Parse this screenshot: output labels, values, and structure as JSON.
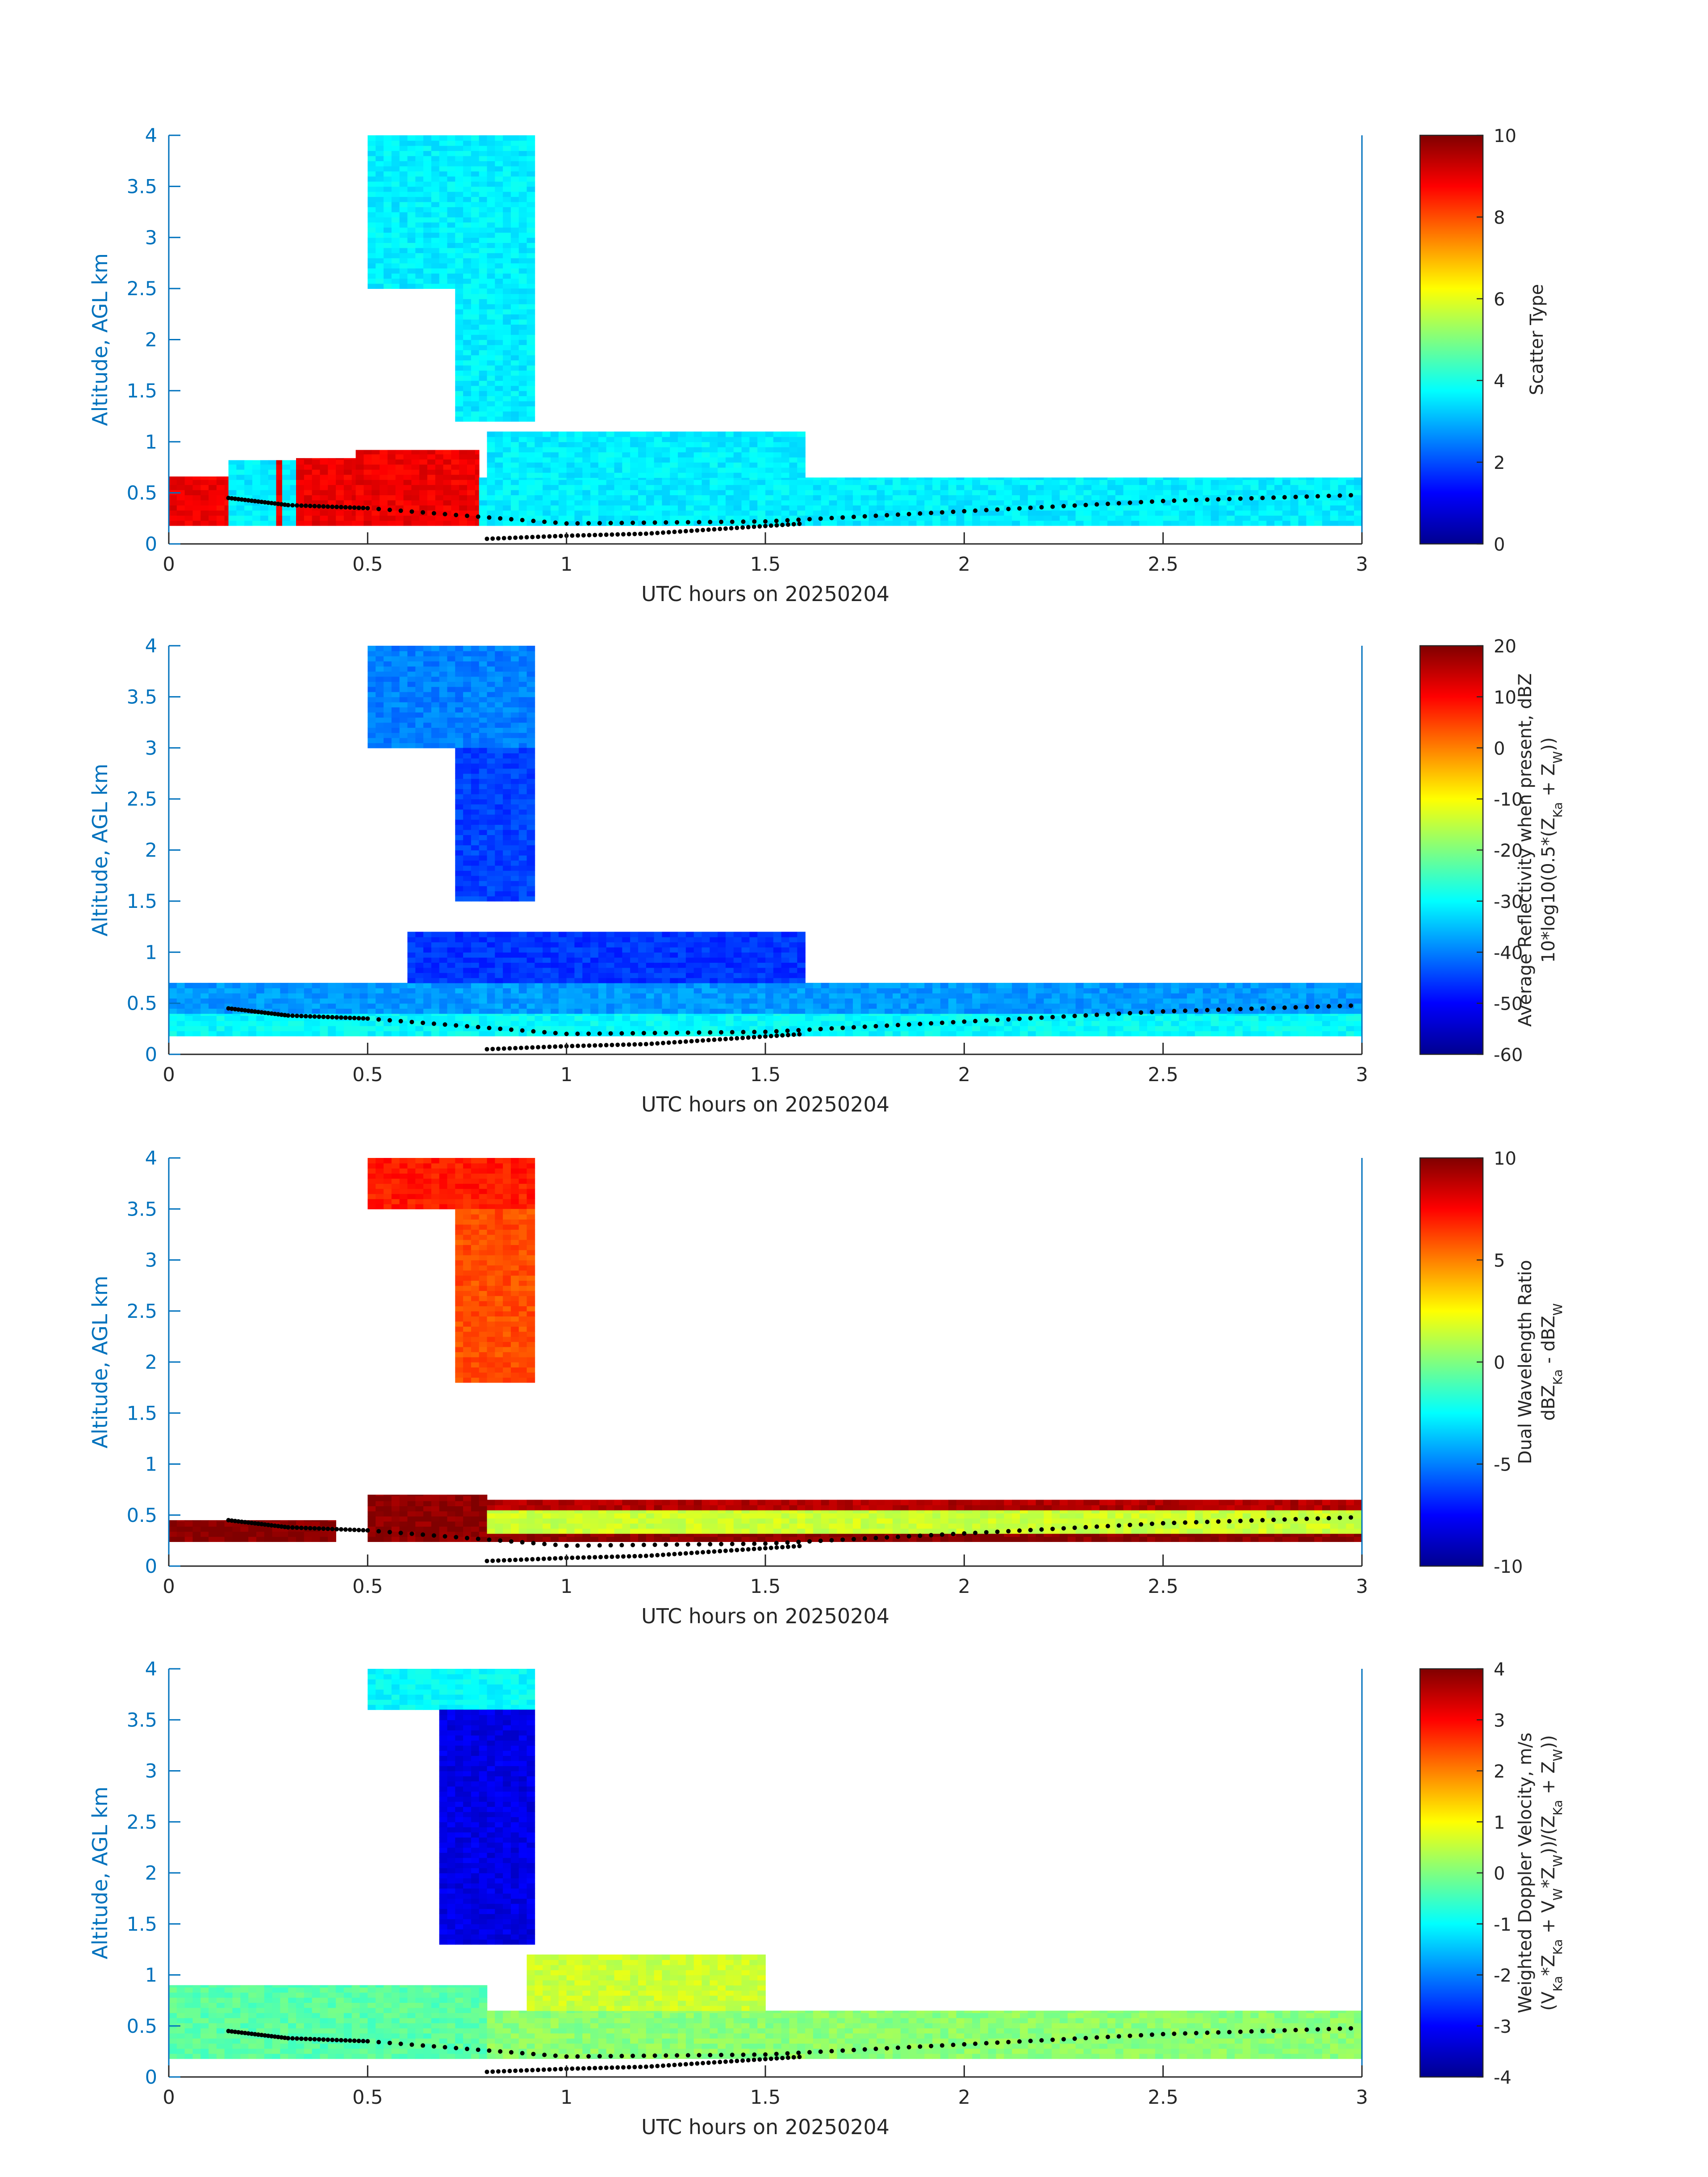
{
  "colors": {
    "axis": "#0072BD",
    "text": "#262626",
    "background": "#ffffff",
    "colormap": "jet"
  },
  "chart_data": [
    {
      "type": "heatmap",
      "title": "",
      "xlabel": "UTC hours on 20250204",
      "ylabel": "Altitude, AGL km",
      "xlim": [
        0,
        3
      ],
      "ylim": [
        0,
        4
      ],
      "xticks": [
        "0",
        "0.5",
        "1",
        "1.5",
        "2",
        "2.5",
        "3"
      ],
      "yticks": [
        "0",
        "0.5",
        "1",
        "1.5",
        "2",
        "2.5",
        "3",
        "3.5",
        "4"
      ],
      "colorbar": {
        "label_lines": [
          "Scatter Type"
        ],
        "range": [
          0,
          10
        ],
        "ticks": [
          "0",
          "2",
          "4",
          "6",
          "8",
          "10"
        ]
      },
      "regions": [
        {
          "x": [
            0,
            0.15
          ],
          "y": [
            0.18,
            0.66
          ],
          "value": 8.9
        },
        {
          "x": [
            0.15,
            0.27
          ],
          "y": [
            0.18,
            0.82
          ],
          "value": 3.6
        },
        {
          "x": [
            0.27,
            0.285
          ],
          "y": [
            0.18,
            0.82
          ],
          "value": 8.9
        },
        {
          "x": [
            0.285,
            0.32
          ],
          "y": [
            0.18,
            0.82
          ],
          "value": 3.6
        },
        {
          "x": [
            0.32,
            0.47
          ],
          "y": [
            0.18,
            0.84
          ],
          "value": 8.9
        },
        {
          "x": [
            0.47,
            0.78
          ],
          "y": [
            0.18,
            0.92
          ],
          "value": 8.9
        },
        {
          "x": [
            0.78,
            3.0
          ],
          "y": [
            0.18,
            0.65
          ],
          "value": 3.6
        },
        {
          "x": [
            0.8,
            1.6
          ],
          "y": [
            0.65,
            1.1
          ],
          "value": 3.6
        },
        {
          "x": [
            0.5,
            0.92
          ],
          "y": [
            2.5,
            4.0
          ],
          "value": 3.6
        },
        {
          "x": [
            0.72,
            0.92
          ],
          "y": [
            1.2,
            2.5
          ],
          "value": 3.6
        }
      ],
      "boundary_layer_top": {
        "x": [
          0.15,
          0.3,
          0.5,
          1.0,
          1.5,
          2.0,
          2.5,
          3.0
        ],
        "y": [
          0.45,
          0.38,
          0.35,
          0.2,
          0.22,
          0.32,
          0.42,
          0.48
        ]
      },
      "surface_dots": {
        "x": [
          0.8,
          1.0,
          1.2,
          1.4,
          1.6
        ],
        "y": [
          0.05,
          0.08,
          0.1,
          0.15,
          0.2
        ]
      }
    },
    {
      "type": "heatmap",
      "title": "",
      "xlabel": "UTC hours on 20250204",
      "ylabel": "Altitude, AGL km",
      "xlim": [
        0,
        3
      ],
      "ylim": [
        0,
        4
      ],
      "xticks": [
        "0",
        "0.5",
        "1",
        "1.5",
        "2",
        "2.5",
        "3"
      ],
      "yticks": [
        "0",
        "0.5",
        "1",
        "1.5",
        "2",
        "2.5",
        "3",
        "3.5",
        "4"
      ],
      "colorbar": {
        "label_lines": [
          "Average Reflectivity when present, dBZ",
          "10*log10(0.5*(Z_Ka + Z_W))"
        ],
        "range": [
          -60,
          20
        ],
        "ticks": [
          "-60",
          "-50",
          "-40",
          "-30",
          "-20",
          "-10",
          "0",
          "10",
          "20"
        ]
      },
      "regions": [
        {
          "x": [
            0,
            3.0
          ],
          "y": [
            0.18,
            0.4
          ],
          "value": -30
        },
        {
          "x": [
            0,
            3.0
          ],
          "y": [
            0.4,
            0.7
          ],
          "value": -38
        },
        {
          "x": [
            0.6,
            1.6
          ],
          "y": [
            0.7,
            1.2
          ],
          "value": -46
        },
        {
          "x": [
            0.5,
            0.92
          ],
          "y": [
            3.0,
            4.0
          ],
          "value": -40
        },
        {
          "x": [
            0.72,
            0.92
          ],
          "y": [
            1.5,
            3.0
          ],
          "value": -45
        }
      ],
      "boundary_layer_top": {
        "x": [
          0.15,
          0.3,
          0.5,
          1.0,
          1.5,
          2.0,
          2.5,
          3.0
        ],
        "y": [
          0.45,
          0.38,
          0.35,
          0.2,
          0.22,
          0.32,
          0.42,
          0.48
        ]
      },
      "surface_dots": {
        "x": [
          0.8,
          1.0,
          1.2,
          1.4,
          1.6
        ],
        "y": [
          0.05,
          0.08,
          0.1,
          0.15,
          0.2
        ]
      }
    },
    {
      "type": "heatmap",
      "title": "",
      "xlabel": "UTC hours on 20250204",
      "ylabel": "Altitude, AGL km",
      "xlim": [
        0,
        3
      ],
      "ylim": [
        0,
        4
      ],
      "xticks": [
        "0",
        "0.5",
        "1",
        "1.5",
        "2",
        "2.5",
        "3"
      ],
      "yticks": [
        "0",
        "0.5",
        "1",
        "1.5",
        "2",
        "2.5",
        "3",
        "3.5",
        "4"
      ],
      "colorbar": {
        "label_lines": [
          "Dual Wavelength Ratio",
          "dBZ_Ka - dBZ_W"
        ],
        "range": [
          -10,
          10
        ],
        "ticks": [
          "-10",
          "-5",
          "0",
          "5",
          "10"
        ]
      },
      "regions": [
        {
          "x": [
            0,
            0.42
          ],
          "y": [
            0.24,
            0.45
          ],
          "value": 9.8
        },
        {
          "x": [
            0.5,
            0.8
          ],
          "y": [
            0.24,
            0.7
          ],
          "value": 9.8
        },
        {
          "x": [
            0.8,
            3.0
          ],
          "y": [
            0.24,
            0.32
          ],
          "value": 9.8
        },
        {
          "x": [
            0.8,
            3.0
          ],
          "y": [
            0.32,
            0.55
          ],
          "value": 1.5
        },
        {
          "x": [
            0.8,
            3.0
          ],
          "y": [
            0.55,
            0.65
          ],
          "value": 9.0
        },
        {
          "x": [
            0.5,
            0.92
          ],
          "y": [
            3.5,
            4.0
          ],
          "value": 7.0
        },
        {
          "x": [
            0.72,
            0.92
          ],
          "y": [
            1.8,
            3.5
          ],
          "value": 6.0
        }
      ],
      "boundary_layer_top": {
        "x": [
          0.15,
          0.3,
          0.5,
          1.0,
          1.5,
          2.0,
          2.5,
          3.0
        ],
        "y": [
          0.45,
          0.38,
          0.35,
          0.2,
          0.22,
          0.32,
          0.42,
          0.48
        ]
      },
      "surface_dots": {
        "x": [
          0.8,
          1.0,
          1.2,
          1.4,
          1.6
        ],
        "y": [
          0.05,
          0.08,
          0.1,
          0.15,
          0.2
        ]
      }
    },
    {
      "type": "heatmap",
      "title": "",
      "xlabel": "UTC hours on 20250204",
      "ylabel": "Altitude, AGL km",
      "xlim": [
        0,
        3
      ],
      "ylim": [
        0,
        4
      ],
      "xticks": [
        "0",
        "0.5",
        "1",
        "1.5",
        "2",
        "2.5",
        "3"
      ],
      "yticks": [
        "0",
        "0.5",
        "1",
        "1.5",
        "2",
        "2.5",
        "3",
        "3.5",
        "4"
      ],
      "colorbar": {
        "label_lines": [
          "Weighted Doppler Velocity, m/s",
          "(V_Ka*Z_Ka + V_W*Z_W))/(Z_Ka + Z_W))"
        ],
        "range": [
          -4,
          4
        ],
        "ticks": [
          "-4",
          "-3",
          "-2",
          "-1",
          "0",
          "1",
          "2",
          "3",
          "4"
        ]
      },
      "regions": [
        {
          "x": [
            0,
            0.8
          ],
          "y": [
            0.18,
            0.9
          ],
          "value": -0.3
        },
        {
          "x": [
            0.8,
            3.0
          ],
          "y": [
            0.18,
            0.65
          ],
          "value": 0.1
        },
        {
          "x": [
            0.9,
            1.5
          ],
          "y": [
            0.65,
            1.2
          ],
          "value": 0.6
        },
        {
          "x": [
            0.5,
            0.92
          ],
          "y": [
            3.6,
            4.0
          ],
          "value": -1.0
        },
        {
          "x": [
            0.68,
            0.92
          ],
          "y": [
            1.3,
            3.6
          ],
          "value": -3.2
        }
      ],
      "boundary_layer_top": {
        "x": [
          0.15,
          0.3,
          0.5,
          1.0,
          1.5,
          2.0,
          2.5,
          3.0
        ],
        "y": [
          0.45,
          0.38,
          0.35,
          0.2,
          0.22,
          0.32,
          0.42,
          0.48
        ]
      },
      "surface_dots": {
        "x": [
          0.8,
          1.0,
          1.2,
          1.4,
          1.6
        ],
        "y": [
          0.05,
          0.08,
          0.1,
          0.15,
          0.2
        ]
      }
    }
  ]
}
